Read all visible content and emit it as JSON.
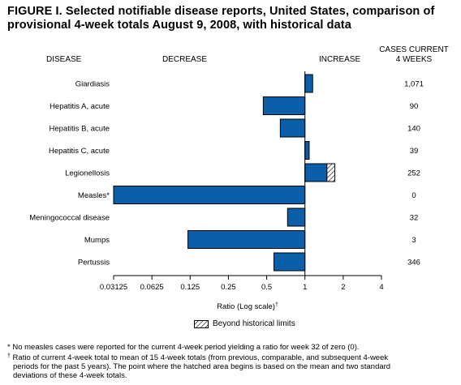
{
  "figure": {
    "title_line1": "FIGURE I. Selected notifiable disease reports, United States, comparison of",
    "title_line2": "provisional 4-week totals August 9, 2008, with historical data"
  },
  "headers": {
    "disease": "DISEASE",
    "decrease": "DECREASE",
    "increase": "INCREASE",
    "cases_line1": "CASES CURRENT",
    "cases_line2": "4 WEEKS"
  },
  "legend": {
    "beyond_label": "Beyond historical limits"
  },
  "footnotes": {
    "measles": "* No measles cases were reported for the current 4-week period yielding a ratio for week 32 of zero (0).",
    "ratio_line1": "Ratio of current 4-week total to mean of 15 4-week totals (from previous, comparable, and subsequent 4-week",
    "ratio_line2": "periods for the past 5 years). The point where the hatched area begins is based on the mean and two standard",
    "ratio_line3": "deviations of these 4-week totals.",
    "ratio_mark": "†"
  },
  "colors": {
    "bar_fill": "#0b5ea8",
    "bar_stroke": "#000000"
  },
  "chart_data": {
    "type": "bar",
    "orientation": "horizontal",
    "xscale": "log2",
    "xlabel": "Ratio (Log scale)",
    "xlabel_mark": "†",
    "xlim": [
      0.03125,
      4
    ],
    "xticks": [
      "0.03125",
      "0.0625",
      "0.125",
      "0.25",
      "0.5",
      "1",
      "2",
      "4"
    ],
    "xtick_values": [
      0.03125,
      0.0625,
      0.125,
      0.25,
      0.5,
      1,
      2,
      4
    ],
    "baseline": 1,
    "categories": [
      "Giardiasis",
      "Hepatitis A, acute",
      "Hepatitis B, acute",
      "Hepatitis C, acute",
      "Legionellosis",
      "Measles*",
      "Meningococcal disease",
      "Mumps",
      "Pertussis"
    ],
    "ratios": [
      1.15,
      0.47,
      0.64,
      1.08,
      1.49,
      0.03125,
      0.73,
      0.12,
      0.57
    ],
    "beyond_limits_end": [
      null,
      null,
      null,
      null,
      1.72,
      null,
      null,
      null,
      null
    ],
    "cases_current_4_weeks": [
      "1,071",
      "90",
      "140",
      "39",
      "252",
      "0",
      "32",
      "3",
      "346"
    ]
  }
}
